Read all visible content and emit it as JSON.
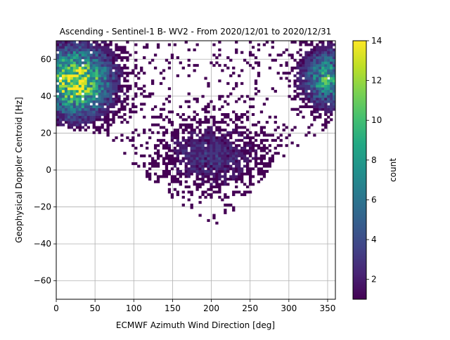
{
  "chart_data": {
    "type": "heatmap",
    "title": "Ascending - Sentinel-1 B- WV2 - From 2020/12/01 to 2020/12/31",
    "xlabel": "ECMWF Azimuth Wind Direction [deg]",
    "ylabel": "Geophysical Doppler Centroid [Hz]",
    "xlim": [
      0,
      360
    ],
    "ylim": [
      -70,
      70
    ],
    "xticks": [
      0,
      50,
      100,
      150,
      200,
      250,
      300,
      350
    ],
    "yticks": [
      -60,
      -40,
      -20,
      0,
      20,
      40,
      60
    ],
    "grid": true,
    "bin_size": {
      "x_deg": 3.6,
      "y_hz": 1.4
    },
    "colorbar": {
      "label": "count",
      "range": [
        1,
        14
      ],
      "ticks": [
        2,
        4,
        6,
        8,
        10,
        12,
        14
      ],
      "colormap": "viridis",
      "colors": [
        "#440154",
        "#482475",
        "#414487",
        "#355f8d",
        "#2a788e",
        "#21918c",
        "#22a884",
        "#44bf70",
        "#7ad151",
        "#bddf26",
        "#fde725"
      ]
    },
    "density_clusters": [
      {
        "x_center": 25,
        "y_center": 48,
        "x_spread": 30,
        "y_spread": 12,
        "peak_count": 14
      },
      {
        "x_center": 350,
        "y_center": 50,
        "x_spread": 22,
        "y_spread": 10,
        "peak_count": 9
      },
      {
        "x_center": 200,
        "y_center": 8,
        "x_spread": 45,
        "y_spread": 12,
        "peak_count": 3
      }
    ],
    "lower_envelope": [
      {
        "x": 0,
        "y": 28
      },
      {
        "x": 60,
        "y": 22
      },
      {
        "x": 100,
        "y": 6
      },
      {
        "x": 150,
        "y": -12
      },
      {
        "x": 190,
        "y": -30
      },
      {
        "x": 230,
        "y": -18
      },
      {
        "x": 280,
        "y": 6
      },
      {
        "x": 330,
        "y": 22
      },
      {
        "x": 360,
        "y": 28
      }
    ]
  }
}
